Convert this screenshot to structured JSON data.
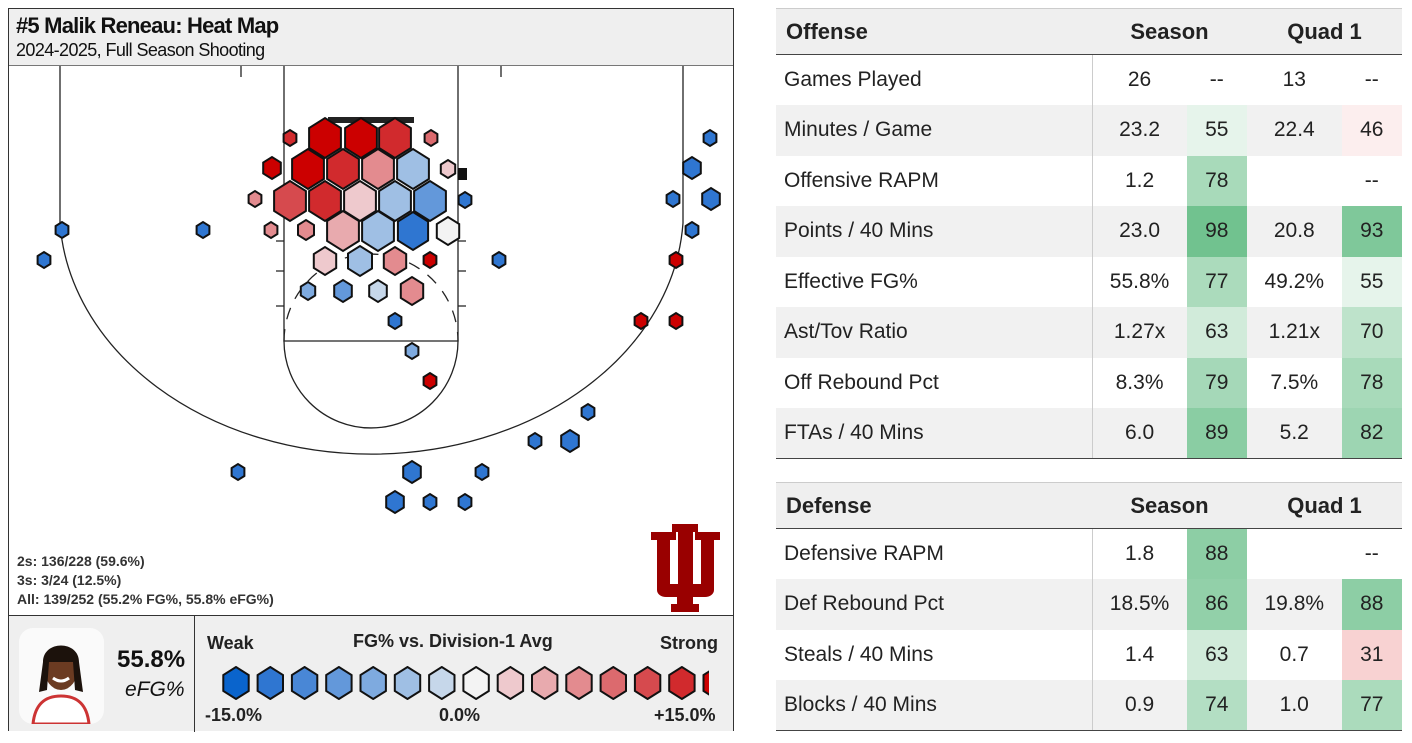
{
  "heatmap": {
    "title": "#5 Malik Reneau: Heat Map",
    "subtitle": "2024-2025, Full Season Shooting",
    "stats": [
      "2s: 136/228 (59.6%)",
      "3s: 3/24 (12.5%)",
      "All: 139/252 (55.2% FG%, 55.8% eFG%)"
    ],
    "efg_value": "55.8%",
    "efg_label": "eFG%",
    "logo_text": "IU",
    "logo_color": "#990000",
    "legend": {
      "weak": "Weak",
      "title": "FG% vs. Division-1 Avg",
      "strong": "Strong",
      "min": "-15.0%",
      "mid": "0.0%",
      "max": "+15.0%"
    },
    "palette": [
      "#0a64cc",
      "#2f76d1",
      "#4987d6",
      "#6398da",
      "#7eaadf",
      "#9fbfe4",
      "#c6d7ea",
      "#f3f3f3",
      "#eec9cd",
      "#e8aaae",
      "#e38b8f",
      "#dc6a6e",
      "#d64a4e",
      "#d12a2d",
      "#cc0000"
    ]
  },
  "chart_data": {
    "type": "hexbin heatmap",
    "title": "#5 Malik Reneau: Heat Map",
    "color_scale": {
      "label": "FG% vs. Division-1 Avg",
      "min": -15.0,
      "max": 15.0,
      "low_label": "Weak",
      "high_label": "Strong"
    }
  },
  "offense": {
    "headers": [
      "Offense",
      "Season",
      "Quad 1"
    ],
    "rows": [
      {
        "label": "Games Played",
        "s": "26",
        "sp": "--",
        "q": "13",
        "qp": "--"
      },
      {
        "label": "Minutes / Game",
        "s": "23.2",
        "sp": "55",
        "q": "22.4",
        "qp": "46"
      },
      {
        "label": "Offensive RAPM",
        "s": "1.2",
        "sp": "78",
        "q": "",
        "qp": "--"
      },
      {
        "label": "Points / 40 Mins",
        "s": "23.0",
        "sp": "98",
        "q": "20.8",
        "qp": "93"
      },
      {
        "label": "Effective FG%",
        "s": "55.8%",
        "sp": "77",
        "q": "49.2%",
        "qp": "55"
      },
      {
        "label": "Ast/Tov Ratio",
        "s": "1.27x",
        "sp": "63",
        "q": "1.21x",
        "qp": "70"
      },
      {
        "label": "Off Rebound Pct",
        "s": "8.3%",
        "sp": "79",
        "q": "7.5%",
        "qp": "78"
      },
      {
        "label": "FTAs / 40 Mins",
        "s": "6.0",
        "sp": "89",
        "q": "5.2",
        "qp": "82"
      }
    ]
  },
  "defense": {
    "headers": [
      "Defense",
      "Season",
      "Quad 1"
    ],
    "rows": [
      {
        "label": "Defensive RAPM",
        "s": "1.8",
        "sp": "88",
        "q": "",
        "qp": "--"
      },
      {
        "label": "Def Rebound Pct",
        "s": "18.5%",
        "sp": "86",
        "q": "19.8%",
        "qp": "88"
      },
      {
        "label": "Steals / 40 Mins",
        "s": "1.4",
        "sp": "63",
        "q": "0.7",
        "qp": "31"
      },
      {
        "label": "Blocks / 40 Mins",
        "s": "0.9",
        "sp": "74",
        "q": "1.0",
        "qp": "77"
      }
    ]
  }
}
